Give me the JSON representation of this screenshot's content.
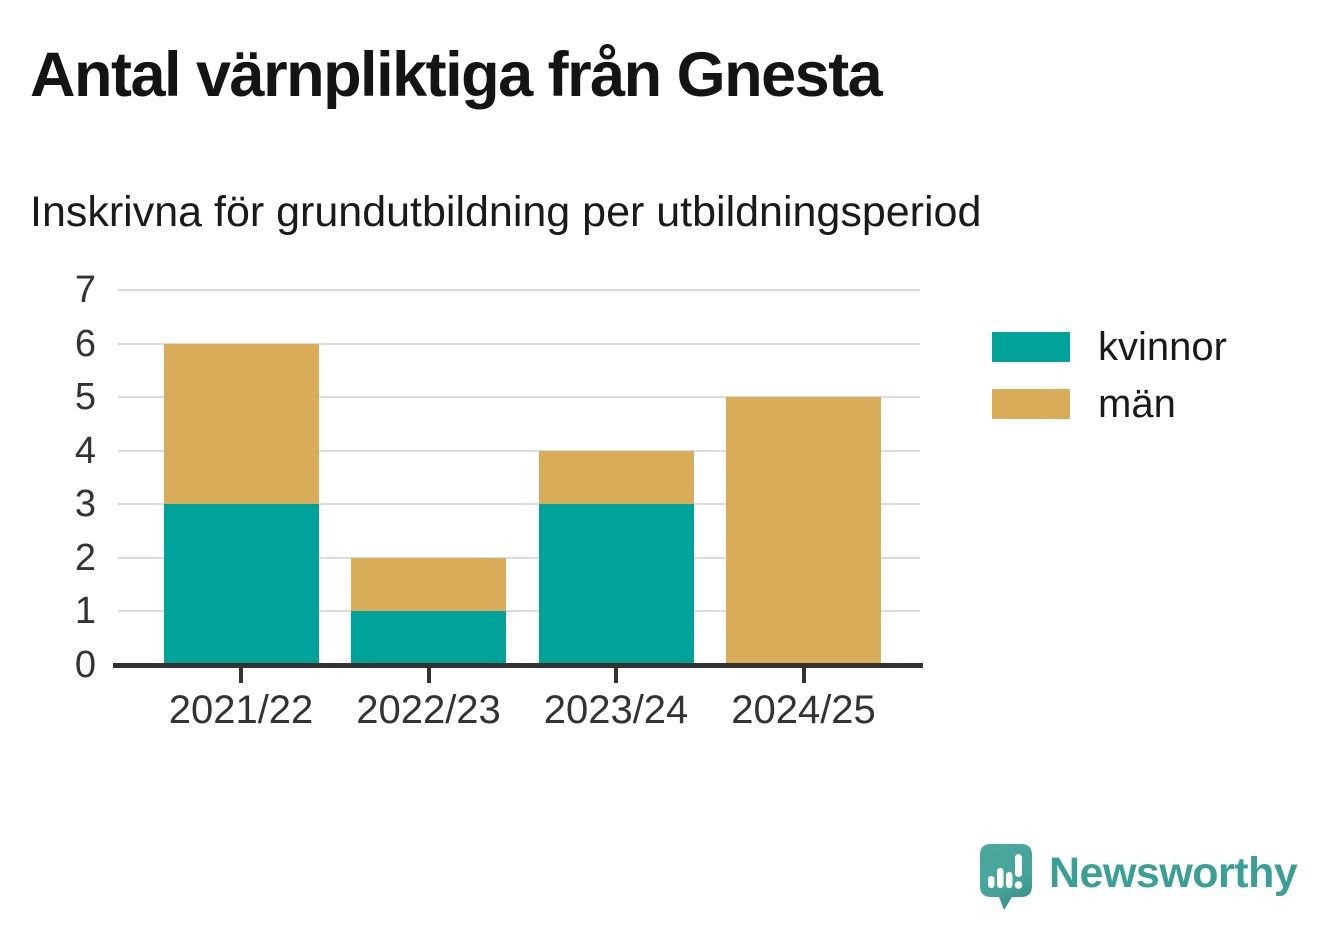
{
  "header": {
    "title": "Antal värnpliktiga från Gnesta",
    "subtitle": "Inskrivna för grundutbildning per utbildningsperiod"
  },
  "chart_data": {
    "type": "bar",
    "stacked": true,
    "title": "Antal värnpliktiga från Gnesta",
    "subtitle": "Inskrivna för grundutbildning per utbildningsperiod",
    "categories": [
      "2021/22",
      "2022/23",
      "2023/24",
      "2024/25"
    ],
    "series": [
      {
        "name": "kvinnor",
        "color": "#00a399",
        "values": [
          3,
          1,
          3,
          0
        ]
      },
      {
        "name": "män",
        "color": "#d9ac5a",
        "values": [
          3,
          1,
          1,
          5
        ]
      }
    ],
    "totals": [
      6,
      2,
      4,
      5
    ],
    "xlabel": "",
    "ylabel": "",
    "ylim": [
      0,
      7
    ],
    "yticks": [
      0,
      1,
      2,
      3,
      4,
      5,
      6,
      7
    ],
    "grid": "horizontal",
    "legend_position": "right"
  },
  "footer": {
    "brand": "Newsworthy",
    "brand_color": "#3aa096",
    "logo_icon": "newsworthy-speech-bubble-bar-chart-icon"
  }
}
